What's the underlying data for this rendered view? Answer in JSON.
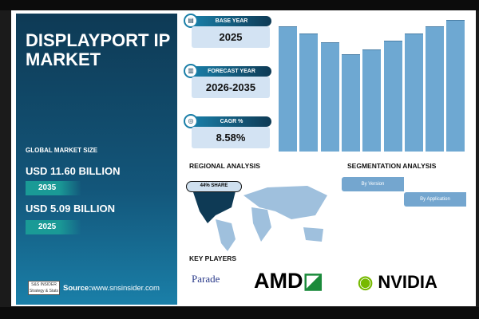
{
  "title": "DISPLAYPORT IP MARKET",
  "market": {
    "label": "GLOBAL MARKET SIZE",
    "forecast_value": "USD 11.60 BILLION",
    "forecast_year": "2035",
    "base_value": "USD 5.09 BILLION",
    "base_year": "2025"
  },
  "source": {
    "logo_text": "S&S INSIDER Strategy & Stats",
    "label": "Source:",
    "url": "www.snsinsider.com"
  },
  "stats": [
    {
      "label": "BASE YEAR",
      "value": "2025",
      "icon": "document-icon"
    },
    {
      "label": "FORECAST YEAR",
      "value": "2026-2035",
      "icon": "chart-icon"
    },
    {
      "label": "CAGR %",
      "value": "8.58%",
      "icon": "growth-icon"
    }
  ],
  "regional": {
    "title": "REGIONAL ANALYSIS",
    "share": "44% SHARE",
    "highlight_color": "#0e3a55"
  },
  "segmentation": {
    "title": "SEGMENTATION ANALYSIS",
    "items": [
      "By Version",
      "By Application"
    ]
  },
  "key_players": {
    "title": "KEY PLAYERS",
    "players": [
      "Parade",
      "AMD",
      "NVIDIA"
    ]
  },
  "chart_data": {
    "type": "bar",
    "values": [
      157,
      148,
      137,
      122,
      128,
      139,
      148,
      157,
      165
    ],
    "color": "#6ea8d2",
    "grid": false
  }
}
